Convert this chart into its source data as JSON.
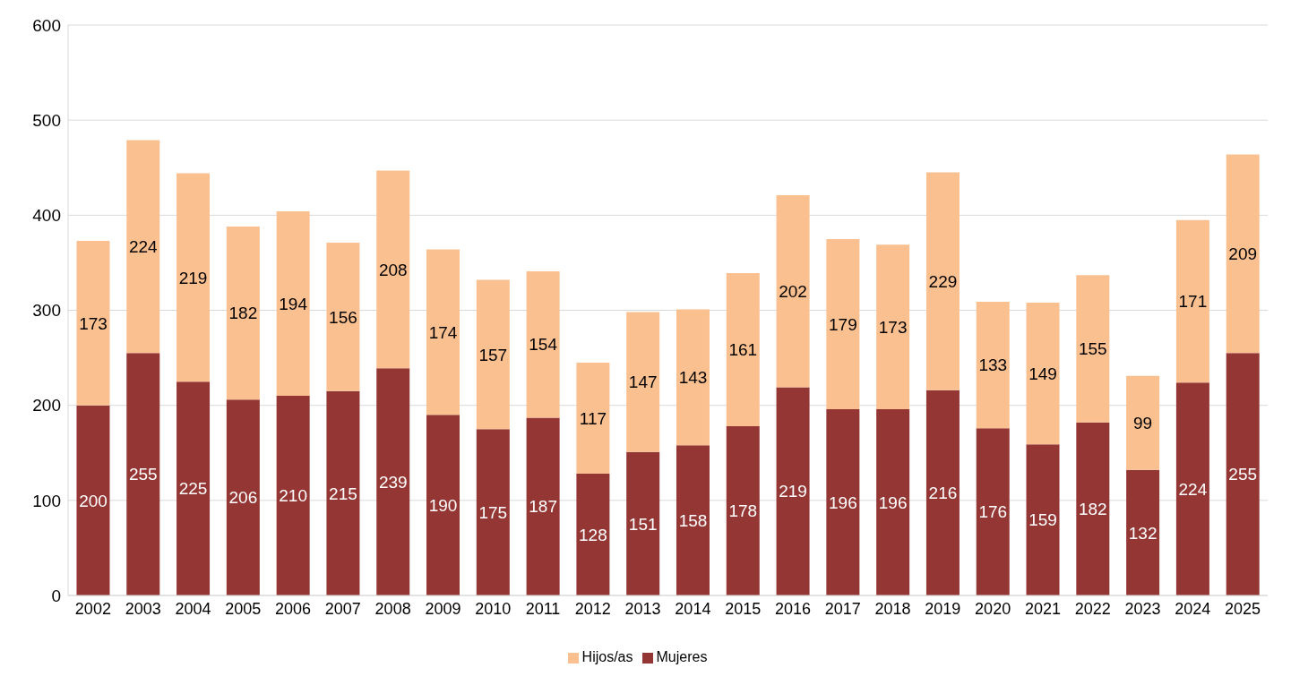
{
  "chart_data": {
    "type": "bar",
    "stacked": true,
    "categories": [
      "2002",
      "2003",
      "2004",
      "2005",
      "2006",
      "2007",
      "2008",
      "2009",
      "2010",
      "2011",
      "2012",
      "2013",
      "2014",
      "2015",
      "2016",
      "2017",
      "2018",
      "2019",
      "2020",
      "2021",
      "2022",
      "2023",
      "2024",
      "2025"
    ],
    "series": [
      {
        "name": "Mujeres",
        "color": "#943634",
        "values": [
          200,
          255,
          225,
          206,
          210,
          215,
          239,
          190,
          175,
          187,
          128,
          151,
          158,
          178,
          219,
          196,
          196,
          216,
          176,
          159,
          182,
          132,
          224,
          255
        ]
      },
      {
        "name": "Hijos/as",
        "color": "#fac090",
        "values": [
          173,
          224,
          219,
          182,
          194,
          156,
          208,
          174,
          157,
          154,
          117,
          147,
          143,
          161,
          202,
          179,
          173,
          229,
          133,
          149,
          155,
          99,
          171,
          209
        ]
      }
    ],
    "ylim": [
      0,
      600
    ],
    "yticks": [
      0,
      100,
      200,
      300,
      400,
      500,
      600
    ],
    "grid": "y",
    "legend": "bottom",
    "data_labels": true
  }
}
